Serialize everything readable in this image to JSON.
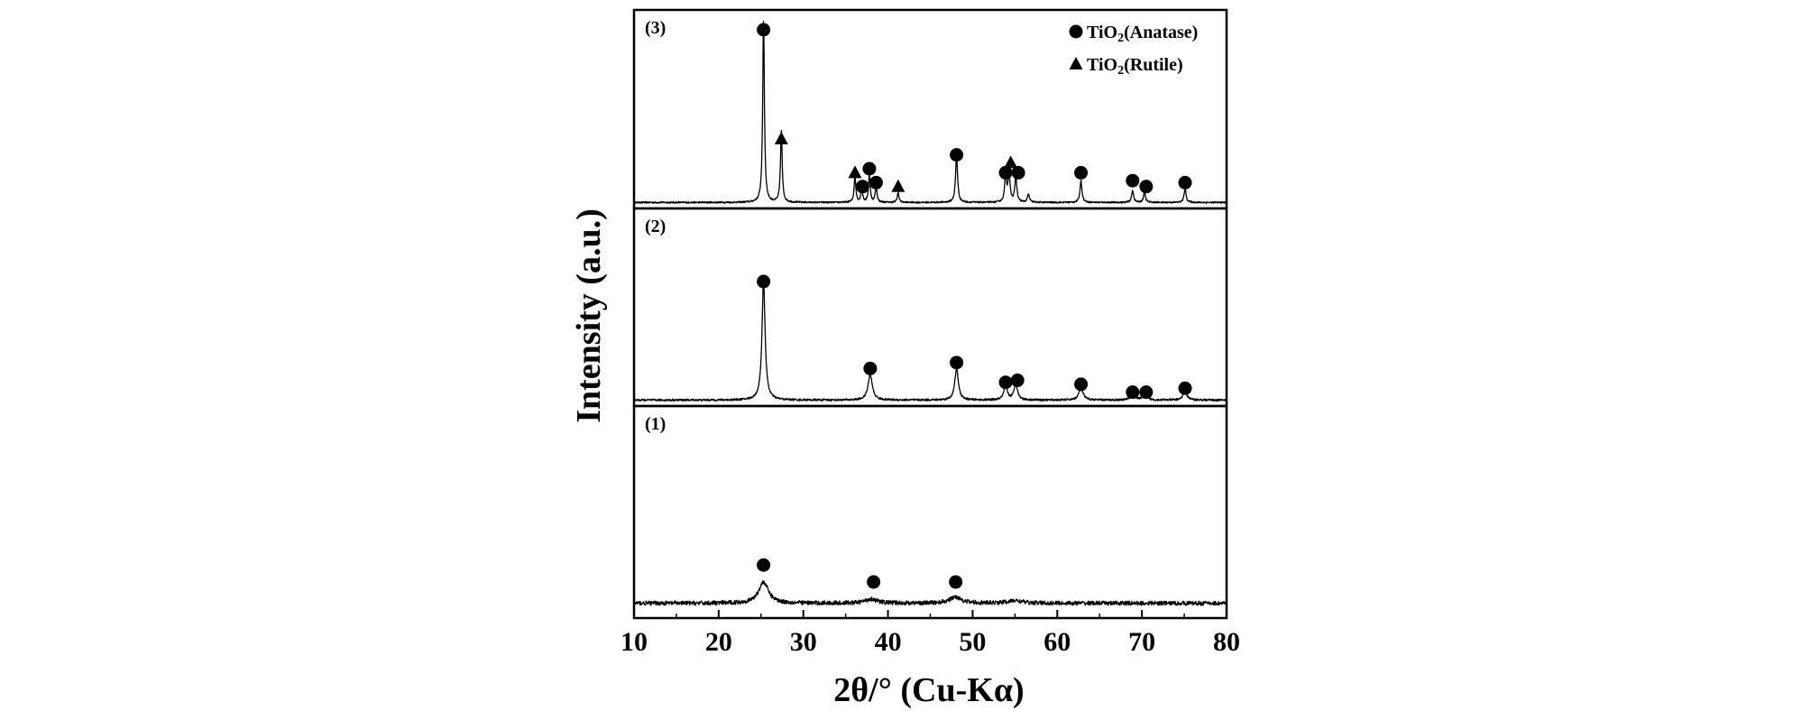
{
  "chart_data": {
    "type": "line",
    "title": "",
    "xlabel": "2θ/° (Cu-Kα)",
    "ylabel": "Intensity (a.u.)",
    "xlim": [
      10,
      80
    ],
    "x_ticks": [
      10,
      20,
      30,
      40,
      50,
      60,
      70,
      80
    ],
    "x_tick_labels": [
      "10",
      "20",
      "30",
      "40",
      "50",
      "60",
      "70",
      "80"
    ],
    "legend": [
      {
        "marker": "circle",
        "prefix": "TiO",
        "sub": "2",
        "suffix": "(Anatase)"
      },
      {
        "marker": "triangle",
        "prefix": "TiO",
        "sub": "2",
        "suffix": "(Rutile)"
      }
    ],
    "panels": [
      {
        "label": "(3)",
        "ylim": [
          0,
          1.0
        ],
        "baseline": 0.03,
        "noise": 0.004,
        "peaks": [
          {
            "x": 25.3,
            "h": 0.92,
            "w": 0.12
          },
          {
            "x": 27.4,
            "h": 0.36,
            "w": 0.12
          },
          {
            "x": 36.1,
            "h": 0.13,
            "w": 0.12
          },
          {
            "x": 36.9,
            "h": 0.07,
            "w": 0.12
          },
          {
            "x": 37.8,
            "h": 0.14,
            "w": 0.12
          },
          {
            "x": 38.6,
            "h": 0.08,
            "w": 0.12
          },
          {
            "x": 41.2,
            "h": 0.05,
            "w": 0.12
          },
          {
            "x": 48.1,
            "h": 0.24,
            "w": 0.14
          },
          {
            "x": 53.9,
            "h": 0.13,
            "w": 0.14
          },
          {
            "x": 54.3,
            "h": 0.14,
            "w": 0.14
          },
          {
            "x": 55.1,
            "h": 0.13,
            "w": 0.14
          },
          {
            "x": 56.6,
            "h": 0.04,
            "w": 0.14
          },
          {
            "x": 62.8,
            "h": 0.11,
            "w": 0.14
          },
          {
            "x": 68.9,
            "h": 0.06,
            "w": 0.14
          },
          {
            "x": 70.3,
            "h": 0.05,
            "w": 0.14
          },
          {
            "x": 75.1,
            "h": 0.07,
            "w": 0.14
          }
        ],
        "markers": [
          {
            "x": 25.3,
            "y": 0.9,
            "type": "circle"
          },
          {
            "x": 27.4,
            "y": 0.35,
            "type": "triangle"
          },
          {
            "x": 36.1,
            "y": 0.18,
            "type": "triangle"
          },
          {
            "x": 37.0,
            "y": 0.11,
            "type": "circle"
          },
          {
            "x": 37.8,
            "y": 0.2,
            "type": "circle"
          },
          {
            "x": 38.6,
            "y": 0.13,
            "type": "circle"
          },
          {
            "x": 41.2,
            "y": 0.11,
            "type": "triangle"
          },
          {
            "x": 48.1,
            "y": 0.27,
            "type": "circle"
          },
          {
            "x": 53.9,
            "y": 0.18,
            "type": "circle"
          },
          {
            "x": 54.5,
            "y": 0.23,
            "type": "triangle"
          },
          {
            "x": 55.4,
            "y": 0.18,
            "type": "circle"
          },
          {
            "x": 62.8,
            "y": 0.18,
            "type": "circle"
          },
          {
            "x": 68.9,
            "y": 0.14,
            "type": "circle"
          },
          {
            "x": 70.5,
            "y": 0.11,
            "type": "circle"
          },
          {
            "x": 75.1,
            "y": 0.13,
            "type": "circle"
          }
        ]
      },
      {
        "label": "(2)",
        "ylim": [
          0,
          1.0
        ],
        "baseline": 0.03,
        "noise": 0.005,
        "peaks": [
          {
            "x": 25.3,
            "h": 0.6,
            "w": 0.22
          },
          {
            "x": 37.9,
            "h": 0.13,
            "w": 0.3
          },
          {
            "x": 48.1,
            "h": 0.16,
            "w": 0.25
          },
          {
            "x": 53.9,
            "h": 0.07,
            "w": 0.25
          },
          {
            "x": 55.1,
            "h": 0.08,
            "w": 0.25
          },
          {
            "x": 62.8,
            "h": 0.06,
            "w": 0.3
          },
          {
            "x": 68.9,
            "h": 0.03,
            "w": 0.3
          },
          {
            "x": 70.3,
            "h": 0.03,
            "w": 0.3
          },
          {
            "x": 75.1,
            "h": 0.04,
            "w": 0.3
          }
        ],
        "markers": [
          {
            "x": 25.3,
            "y": 0.63,
            "type": "circle"
          },
          {
            "x": 37.9,
            "y": 0.19,
            "type": "circle"
          },
          {
            "x": 48.1,
            "y": 0.22,
            "type": "circle"
          },
          {
            "x": 53.9,
            "y": 0.12,
            "type": "circle"
          },
          {
            "x": 55.3,
            "y": 0.13,
            "type": "circle"
          },
          {
            "x": 62.8,
            "y": 0.11,
            "type": "circle"
          },
          {
            "x": 68.9,
            "y": 0.07,
            "type": "circle"
          },
          {
            "x": 70.5,
            "y": 0.07,
            "type": "circle"
          },
          {
            "x": 75.1,
            "y": 0.09,
            "type": "circle"
          }
        ]
      },
      {
        "label": "(1)",
        "ylim": [
          0,
          1.0
        ],
        "baseline": 0.07,
        "noise": 0.01,
        "peaks": [
          {
            "x": 25.3,
            "h": 0.1,
            "w": 0.7
          },
          {
            "x": 38.0,
            "h": 0.02,
            "w": 0.8
          },
          {
            "x": 48.0,
            "h": 0.03,
            "w": 0.8
          },
          {
            "x": 55.0,
            "h": 0.012,
            "w": 1.0
          }
        ],
        "markers": [
          {
            "x": 25.3,
            "y": 0.25,
            "type": "circle"
          },
          {
            "x": 38.3,
            "y": 0.17,
            "type": "circle"
          },
          {
            "x": 48.0,
            "y": 0.17,
            "type": "circle"
          }
        ]
      }
    ]
  }
}
